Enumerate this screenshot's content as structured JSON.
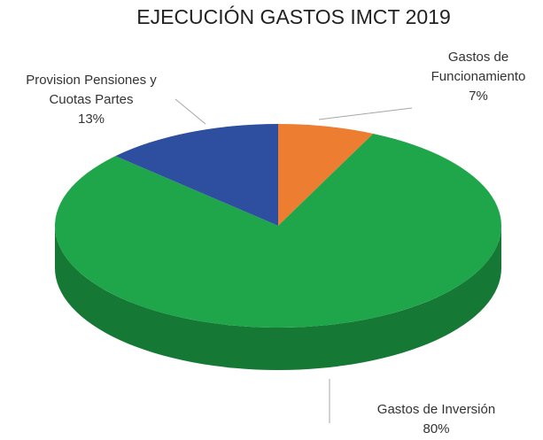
{
  "chart_data": {
    "type": "pie",
    "title": "EJECUCIÓN GASTOS IMCT 2019",
    "categories": [
      "Gastos de Funcionamiento",
      "Gastos de Inversión",
      "Provision Pensiones y Cuotas Partes"
    ],
    "values": [
      7,
      80,
      13
    ],
    "value_labels": [
      "7%",
      "80%",
      "13%"
    ],
    "colors": [
      "#ED7D31",
      "#1FA64A",
      "#2E4FA0"
    ]
  }
}
